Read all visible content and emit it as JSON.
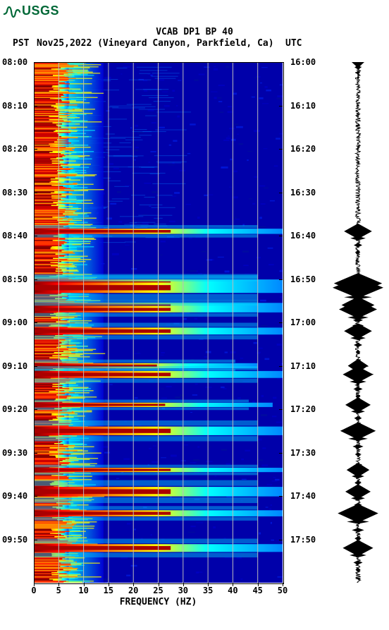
{
  "logo": {
    "org": "USGS",
    "color": "#006837"
  },
  "header": {
    "title": "VCAB DP1 BP 40",
    "left_tz": "PST",
    "date_loc": "Nov25,2022 (Vineyard Canyon, Parkfield, Ca)",
    "right_tz": "UTC"
  },
  "axes": {
    "xlabel": "FREQUENCY (HZ)",
    "xlim": [
      0,
      50
    ],
    "xticks": [
      0,
      5,
      10,
      15,
      20,
      25,
      30,
      35,
      40,
      45,
      50
    ],
    "left_time_labels": [
      "08:00",
      "08:10",
      "08:20",
      "08:30",
      "08:40",
      "08:50",
      "09:00",
      "09:10",
      "09:20",
      "09:30",
      "09:40",
      "09:50"
    ],
    "right_time_labels": [
      "16:00",
      "16:10",
      "16:20",
      "16:30",
      "16:40",
      "16:50",
      "17:00",
      "17:10",
      "17:20",
      "17:30",
      "17:40",
      "17:50"
    ],
    "time_range_minutes": [
      0,
      120
    ],
    "grid_x": [
      5,
      10,
      15,
      20,
      25,
      30,
      35,
      40,
      45
    ],
    "grid_color": "#bbbbbb",
    "label_fontsize": 12
  },
  "spectrogram": {
    "type": "spectrogram",
    "colormap": [
      "#000088",
      "#0000dd",
      "#0044ff",
      "#00aaff",
      "#00ffff",
      "#88ff88",
      "#ffff00",
      "#ff8800",
      "#ff0000",
      "#880000"
    ],
    "background": "#0000aa",
    "strong_events_minutes": [
      39,
      51,
      52,
      56,
      57,
      62,
      70,
      72,
      79,
      85,
      94,
      99,
      104,
      112
    ],
    "event_max_hz": [
      50,
      50,
      50,
      50,
      50,
      50,
      45,
      50,
      48,
      50,
      50,
      50,
      50,
      50
    ],
    "event_thickness": [
      1.2,
      1.8,
      2.4,
      1.0,
      1.4,
      1.6,
      1.2,
      1.6,
      1.0,
      2.0,
      1.0,
      2.2,
      1.4,
      1.8
    ],
    "low_freq_band_max_hz": 7,
    "low_freq_bleed_hz": 14
  },
  "waveform": {
    "type": "seismogram",
    "color": "#000000",
    "noise_amplitude": 0.1,
    "spikes_minutes": [
      0,
      39,
      51,
      52,
      56,
      57,
      62,
      70,
      72,
      79,
      85,
      94,
      99,
      104,
      112
    ],
    "spike_amplitude": [
      0.25,
      0.55,
      0.95,
      1.0,
      0.65,
      0.75,
      0.55,
      0.4,
      0.6,
      0.5,
      0.7,
      0.45,
      0.5,
      0.8,
      0.6
    ]
  }
}
